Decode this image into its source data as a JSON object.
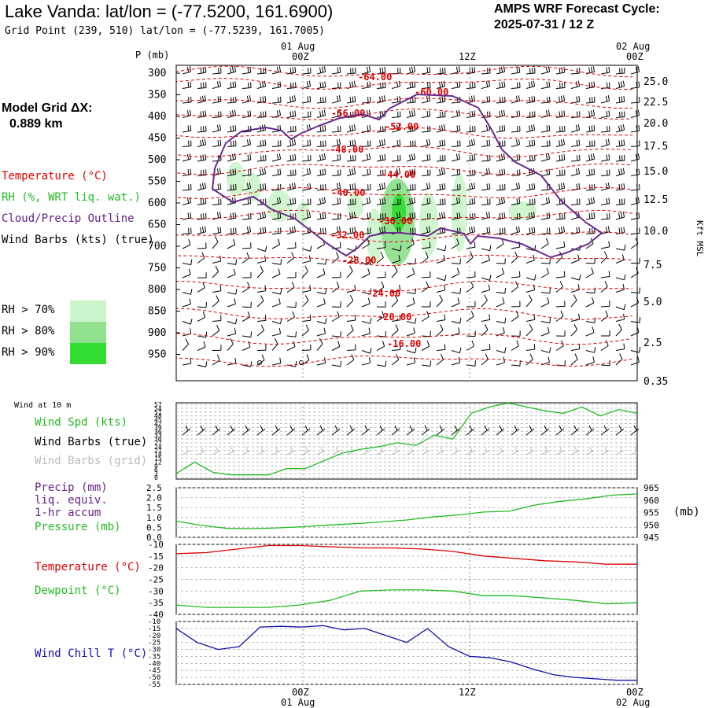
{
  "header": {
    "title": "Lake Vanda:  lat/lon = (-77.5200, 161.6900)",
    "grid_point": "Grid Point (239, 510) lat/lon = (-77.5239, 161.7005)",
    "cycle_line1": "AMPS WRF Forecast Cycle:",
    "cycle_line2": "2025-07-31 / 12  Z"
  },
  "model_grid": {
    "line1": "Model Grid ΔX:",
    "line2": "0.889 km"
  },
  "legend": {
    "temperature": "Temperature (°C)",
    "rh": "RH (%, WRT liq. wat.)",
    "cloud": "Cloud/Precip Outline",
    "wind": "Wind Barbs (kts) (true)",
    "rh70": "RH > 70%",
    "rh80": "RH > 80%",
    "rh90": "RH > 90%"
  },
  "colors": {
    "temperature": "#dd0000",
    "cloud": "#6a2a8c",
    "rh70": "#ccf5cc",
    "rh80": "#8fe08f",
    "rh90": "#33dd33",
    "wind_speed": "#22bb22",
    "dewpoint": "#22bb22",
    "wind_chill": "#1010aa",
    "precip_label": "#662288"
  },
  "time_axis": {
    "top_dates": [
      "01 Aug",
      "02 Aug"
    ],
    "top_labels": [
      "00Z",
      "12Z",
      "00Z"
    ],
    "bottom_labels": [
      "00Z",
      "12Z",
      "00Z"
    ],
    "bottom_dates": [
      "01 Aug",
      "02 Aug"
    ]
  },
  "panels": {
    "wind_at_10m": "Wind at 10 m",
    "wind_spd": "Wind Spd (kts)",
    "wind_barbs_true": "Wind Barbs (true)",
    "wind_barbs_grid": "Wind Barbs (grid)",
    "precip_1": "Precip (mm)",
    "precip_2": "liq. equiv.",
    "precip_3": "1-hr accum",
    "pressure": "Pressure (mb)",
    "pressure_unit": "(mb)",
    "temp": "Temperature (°C)",
    "dew": "Dewpoint (°C)",
    "chill": "Wind Chill T (°C)"
  },
  "chart_data": [
    {
      "type": "heatmap",
      "ylabel": "P (mb)",
      "y2label": "Kft MSL",
      "y_ticks": [
        "300",
        "350",
        "400",
        "450",
        "500",
        "550",
        "600",
        "650",
        "700",
        "750",
        "800",
        "850",
        "900",
        "950"
      ],
      "y2_ticks": [
        "25.0",
        "22.5",
        "20.0",
        "17.5",
        "15.0",
        "12.5",
        "10.0",
        "7.5",
        "5.0",
        "2.5",
        "0.35"
      ],
      "temperature_contours": [
        "-64.00",
        "-60.00",
        "-56.00",
        "-52.00",
        "-48.00",
        "-44.00",
        "-40.00",
        "-36.00",
        "-32.00",
        "-28.00",
        "-24.00",
        "-20.00",
        "-16.00"
      ]
    },
    {
      "type": "line",
      "name": "Wind Spd (kts)",
      "y_ticks": [
        "57",
        "54",
        "51",
        "48",
        "45",
        "42",
        "39",
        "36",
        "33",
        "30",
        "27",
        "24",
        "21",
        "18",
        "15",
        "12",
        "9",
        "6",
        "3",
        "0"
      ],
      "values": [
        3,
        12,
        4,
        2,
        2,
        2,
        7,
        7,
        13,
        19,
        22,
        24,
        27,
        25,
        33,
        30,
        50,
        55,
        58,
        55,
        52,
        50,
        55,
        48,
        53,
        50
      ]
    },
    {
      "type": "line",
      "name": "Pressure (mb)",
      "y_ticks": [
        "2.5",
        "2.0",
        "1.5",
        "1.0",
        "0.5",
        "0.0"
      ],
      "y2_ticks": [
        "965",
        "960",
        "955",
        "950",
        "945"
      ],
      "values": [
        951.5,
        949.8,
        948.6,
        948.5,
        948.8,
        949.3,
        950.0,
        950.5,
        951.2,
        952.0,
        953.2,
        954.0,
        955.2,
        955.5,
        958.0,
        959.5,
        960.5,
        962.0,
        962.5
      ]
    },
    {
      "type": "line",
      "name": "Temperature and Dewpoint",
      "y_ticks": [
        "-10",
        "-15",
        "-20",
        "-25",
        "-30",
        "-35",
        "-40"
      ],
      "series": [
        {
          "name": "Temperature (°C)",
          "values": [
            -14,
            -13.5,
            -12,
            -10.5,
            -10.5,
            -11,
            -11.5,
            -11.5,
            -12,
            -13,
            -15,
            -16,
            -17,
            -17.5,
            -18.5,
            -18.5
          ]
        },
        {
          "name": "Dewpoint (°C)",
          "values": [
            -36,
            -37,
            -37,
            -37,
            -36,
            -34,
            -30,
            -29.5,
            -29.5,
            -30,
            -32,
            -32,
            -33,
            -34,
            -35.5,
            -35
          ]
        }
      ]
    },
    {
      "type": "line",
      "name": "Wind Chill T (°C)",
      "y_ticks": [
        "-10",
        "-15",
        "-20",
        "-25",
        "-30",
        "-35",
        "-40",
        "-45",
        "-50",
        "-55"
      ],
      "values": [
        -15,
        -25,
        -30,
        -28,
        -14,
        -13.5,
        -14,
        -13,
        -16,
        -15,
        -20,
        -25,
        -15,
        -28,
        -35,
        -36,
        -39,
        -44,
        -48,
        -50,
        -51,
        -52,
        -52
      ]
    }
  ]
}
